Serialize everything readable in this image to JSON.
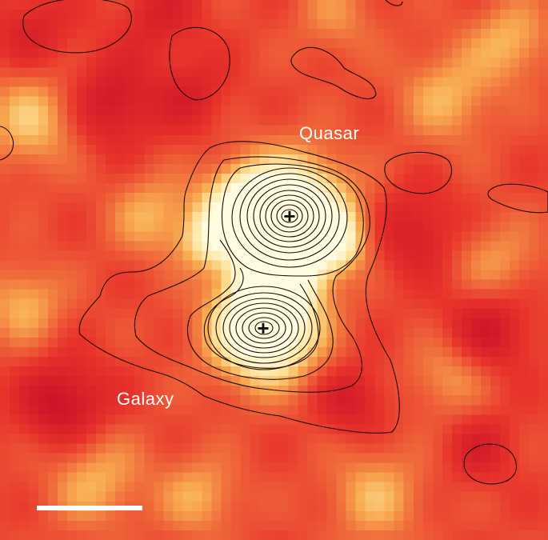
{
  "labels": {
    "quasar": "Quasar",
    "galaxy": "Galaxy"
  },
  "markers": [
    {
      "name": "quasar-position",
      "symbol": "+"
    },
    {
      "name": "galaxy-position",
      "symbol": "+"
    }
  ],
  "colors": {
    "background": "#e8322b",
    "low": "#d8222c",
    "mid": "#f37a3c",
    "high": "#fde8a0",
    "peak": "#fffbe0",
    "contour": "#1a0a08",
    "text": "#ffffff",
    "scale_bar": "#ffffff"
  },
  "scale_bar": {
    "present": true
  }
}
